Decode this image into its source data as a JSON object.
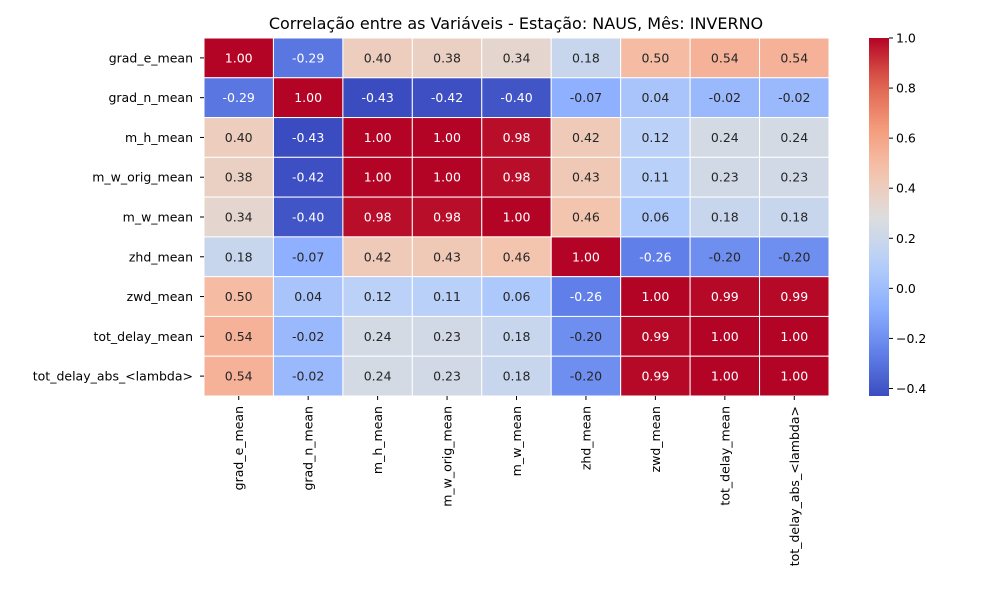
{
  "chart_data": {
    "type": "heatmap",
    "title": "Correlação entre as Variáveis - Estação: NAUS, Mês: INVERNO",
    "xlabel": "",
    "ylabel": "",
    "colormap": "coolwarm",
    "vmin": -0.43,
    "vmax": 1.0,
    "row_labels": [
      "grad_e_mean",
      "grad_n_mean",
      "m_h_mean",
      "m_w_orig_mean",
      "m_w_mean",
      "zhd_mean",
      "zwd_mean",
      "tot_delay_mean",
      "tot_delay_abs_<lambda>"
    ],
    "col_labels": [
      "grad_e_mean",
      "grad_n_mean",
      "m_h_mean",
      "m_w_orig_mean",
      "m_w_mean",
      "zhd_mean",
      "zwd_mean",
      "tot_delay_mean",
      "tot_delay_abs_<lambda>"
    ],
    "values": [
      [
        1.0,
        -0.29,
        0.4,
        0.38,
        0.34,
        0.18,
        0.5,
        0.54,
        0.54
      ],
      [
        -0.29,
        1.0,
        -0.43,
        -0.42,
        -0.4,
        -0.07,
        0.04,
        -0.02,
        -0.02
      ],
      [
        0.4,
        -0.43,
        1.0,
        1.0,
        0.98,
        0.42,
        0.12,
        0.24,
        0.24
      ],
      [
        0.38,
        -0.42,
        1.0,
        1.0,
        0.98,
        0.43,
        0.11,
        0.23,
        0.23
      ],
      [
        0.34,
        -0.4,
        0.98,
        0.98,
        1.0,
        0.46,
        0.06,
        0.18,
        0.18
      ],
      [
        0.18,
        -0.07,
        0.42,
        0.43,
        0.46,
        1.0,
        -0.26,
        -0.2,
        -0.2
      ],
      [
        0.5,
        0.04,
        0.12,
        0.11,
        0.06,
        -0.26,
        1.0,
        0.99,
        0.99
      ],
      [
        0.54,
        -0.02,
        0.24,
        0.23,
        0.18,
        -0.2,
        0.99,
        1.0,
        1.0
      ],
      [
        0.54,
        -0.02,
        0.24,
        0.23,
        0.18,
        -0.2,
        0.99,
        1.0,
        1.0
      ]
    ],
    "colorbar_ticks": [
      "1.0",
      "0.8",
      "0.6",
      "0.4",
      "0.2",
      "0.0",
      "−0.2",
      "−0.4"
    ],
    "colorbar_tick_values": [
      1.0,
      0.8,
      0.6,
      0.4,
      0.2,
      0.0,
      -0.2,
      -0.4
    ]
  }
}
